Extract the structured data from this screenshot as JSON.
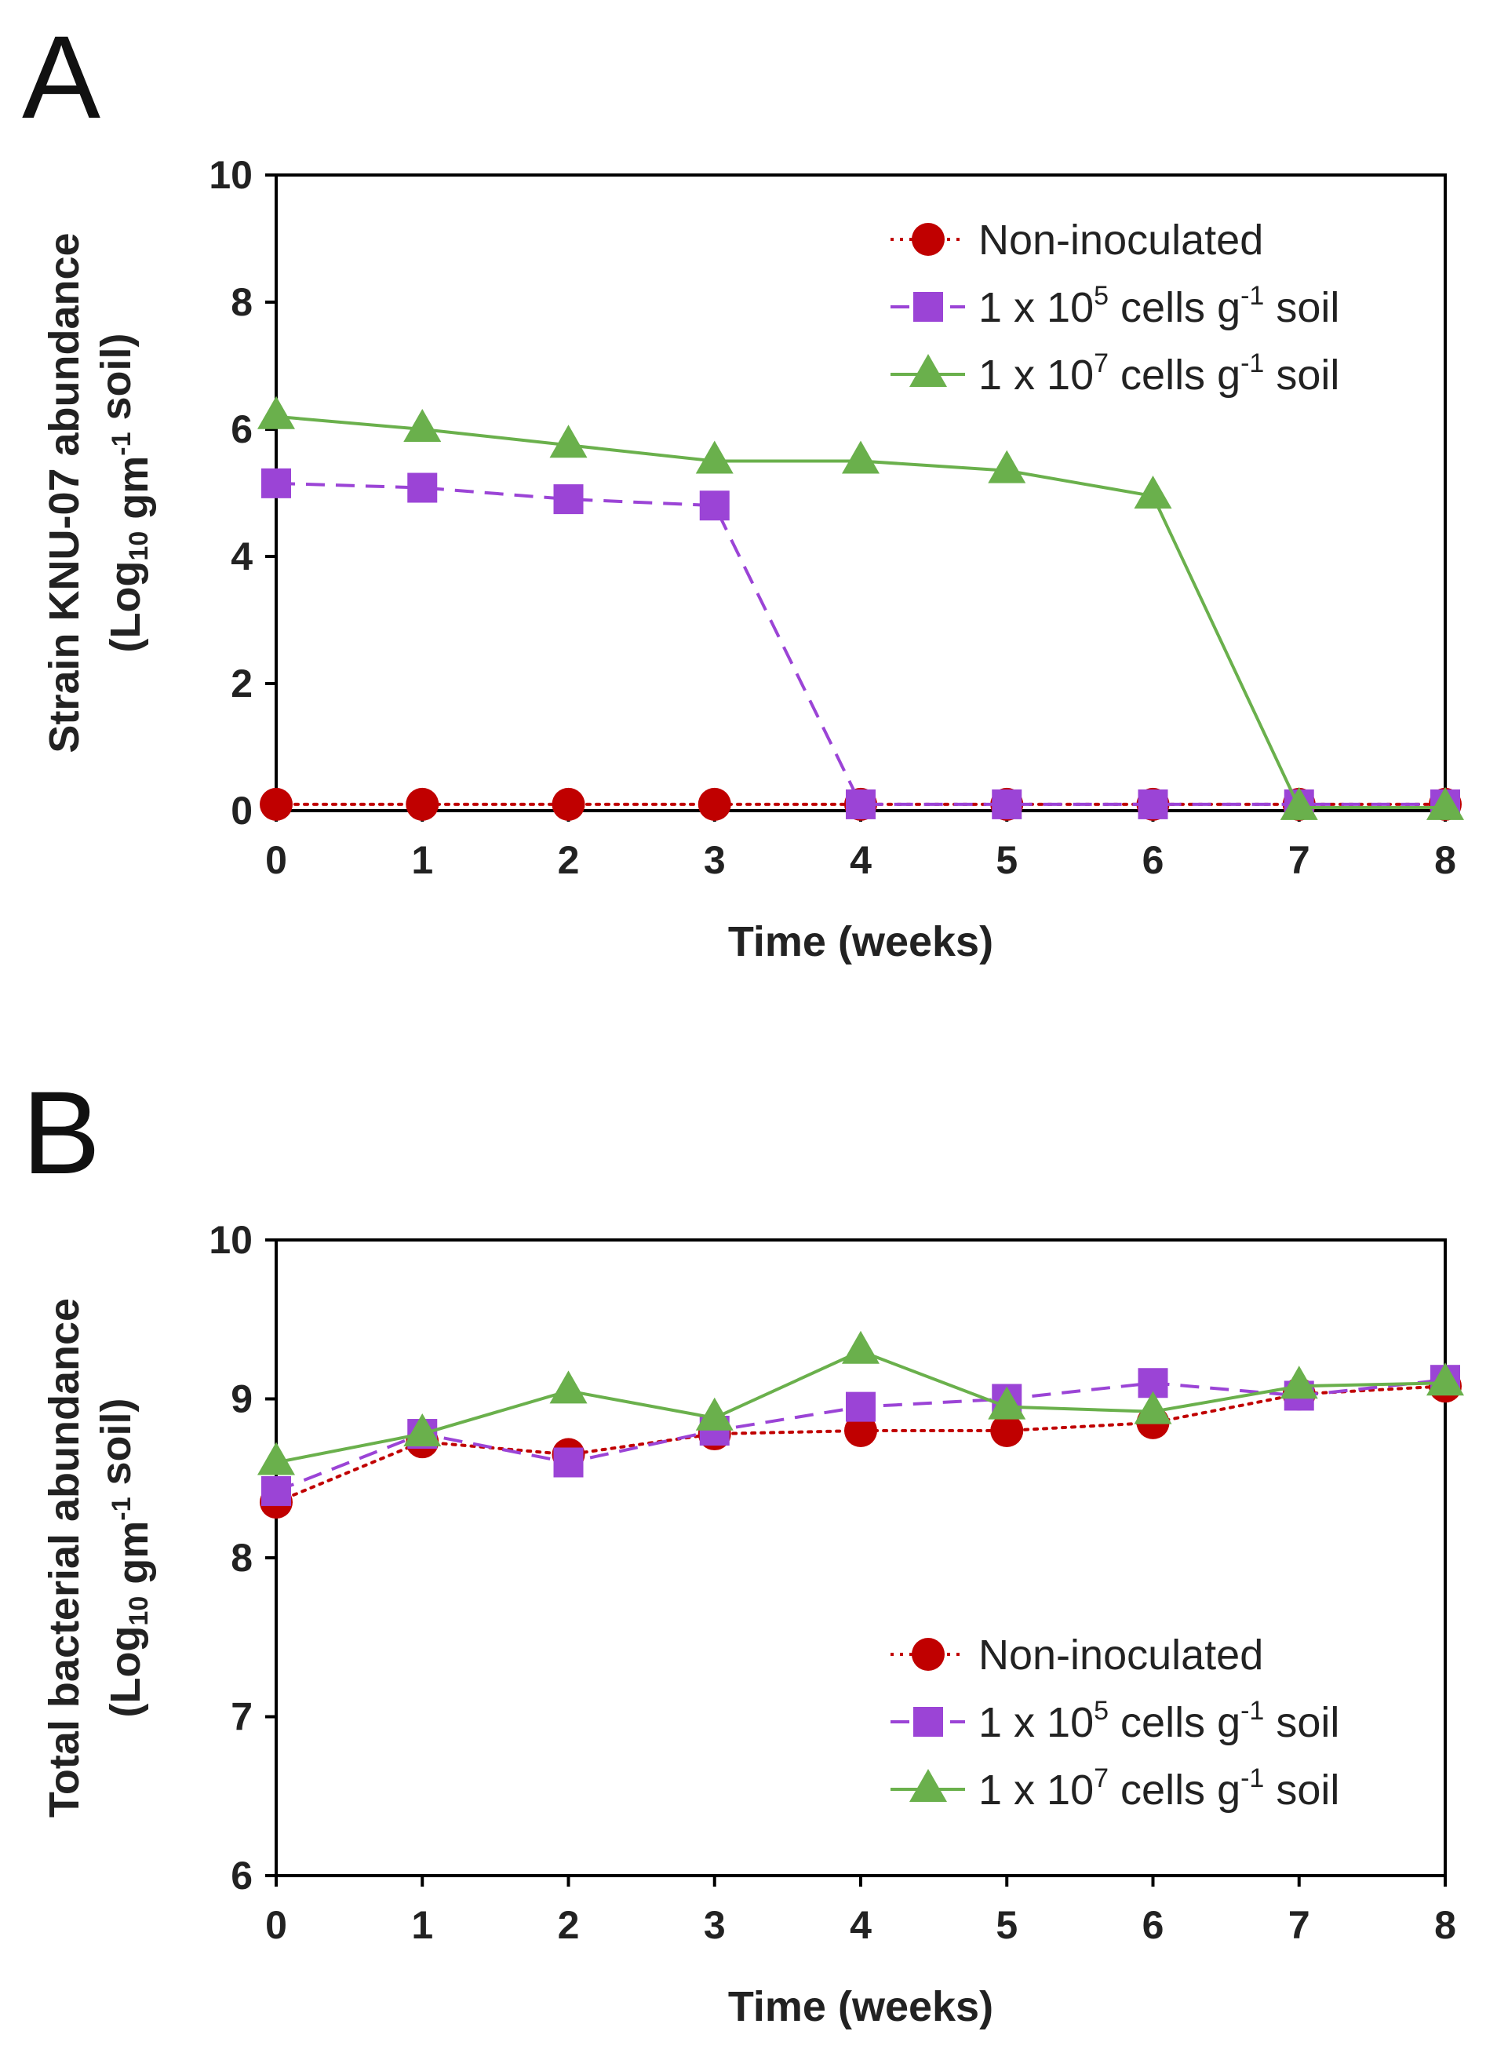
{
  "legend_sup_minus1": "-1",
  "chart_data": [
    {
      "panel": "A",
      "type": "line",
      "title": "",
      "xlabel": "Time (weeks)",
      "ylabel_line1": "Strain KNU-07 abundance",
      "ylabel_prefix": "(Log",
      "ylabel_sub": "10",
      "ylabel_mid": " gm",
      "ylabel_sup": "-1",
      "ylabel_suffix": " soil)",
      "xlim": [
        0,
        8
      ],
      "ylim": [
        0,
        10
      ],
      "x_ticks": [
        "0",
        "1",
        "2",
        "3",
        "4",
        "5",
        "6",
        "7",
        "8"
      ],
      "y_ticks": [
        "0",
        "2",
        "4",
        "6",
        "8",
        "10"
      ],
      "x": [
        0,
        1,
        2,
        3,
        4,
        5,
        6,
        7,
        8
      ],
      "legend_position": "top-right",
      "series": [
        {
          "name": "Non-inoculated",
          "label_parts": [
            "Non-inoculated"
          ],
          "color": "#c00000",
          "marker": "circle",
          "dash": "dotted",
          "values": [
            0.1,
            0.1,
            0.1,
            0.1,
            0.1,
            0.1,
            0.1,
            0.1,
            0.1
          ]
        },
        {
          "name": "1 x 10^5 cells g^-1 soil",
          "label_parts": [
            "1 x 10",
            "5",
            " cells g",
            " soil"
          ],
          "color": "#9b44d6",
          "marker": "square",
          "dash": "dashed",
          "values": [
            5.15,
            5.08,
            4.9,
            4.8,
            0.1,
            0.1,
            0.1,
            0.1,
            0.1
          ]
        },
        {
          "name": "1 x 10^7 cells g^-1 soil",
          "label_parts": [
            "1 x 10",
            "7",
            " cells g",
            " soil"
          ],
          "color": "#6ab04c",
          "marker": "triangle",
          "dash": "solid",
          "values": [
            6.2,
            6.0,
            5.75,
            5.5,
            5.5,
            5.35,
            4.95,
            0.05,
            0.05
          ]
        }
      ]
    },
    {
      "panel": "B",
      "type": "line",
      "title": "",
      "xlabel": "Time (weeks)",
      "ylabel_line1": "Total bacterial abundance",
      "ylabel_prefix": "(Log",
      "ylabel_sub": "10",
      "ylabel_mid": " gm",
      "ylabel_sup": "-1",
      "ylabel_suffix": " soil)",
      "xlim": [
        0,
        8
      ],
      "ylim": [
        6,
        10
      ],
      "x_ticks": [
        "0",
        "1",
        "2",
        "3",
        "4",
        "5",
        "6",
        "7",
        "8"
      ],
      "y_ticks": [
        "6",
        "7",
        "8",
        "9",
        "10"
      ],
      "x": [
        0,
        1,
        2,
        3,
        4,
        5,
        6,
        7,
        8
      ],
      "legend_position": "bottom-right",
      "series": [
        {
          "name": "Non-inoculated",
          "label_parts": [
            "Non-inoculated"
          ],
          "color": "#c00000",
          "marker": "circle",
          "dash": "dotted",
          "values": [
            8.35,
            8.73,
            8.65,
            8.78,
            8.8,
            8.8,
            8.85,
            9.03,
            9.08
          ]
        },
        {
          "name": "1 x 10^5 cells g^-1 soil",
          "label_parts": [
            "1 x 10",
            "5",
            " cells g",
            " soil"
          ],
          "color": "#9b44d6",
          "marker": "square",
          "dash": "dashed",
          "values": [
            8.42,
            8.78,
            8.6,
            8.8,
            8.95,
            9.0,
            9.1,
            9.02,
            9.12
          ]
        },
        {
          "name": "1 x 10^7 cells g^-1 soil",
          "label_parts": [
            "1 x 10",
            "7",
            " cells g",
            " soil"
          ],
          "color": "#6ab04c",
          "marker": "triangle",
          "dash": "solid",
          "values": [
            8.6,
            8.78,
            9.05,
            8.88,
            9.3,
            8.95,
            8.92,
            9.08,
            9.1
          ]
        }
      ]
    }
  ]
}
